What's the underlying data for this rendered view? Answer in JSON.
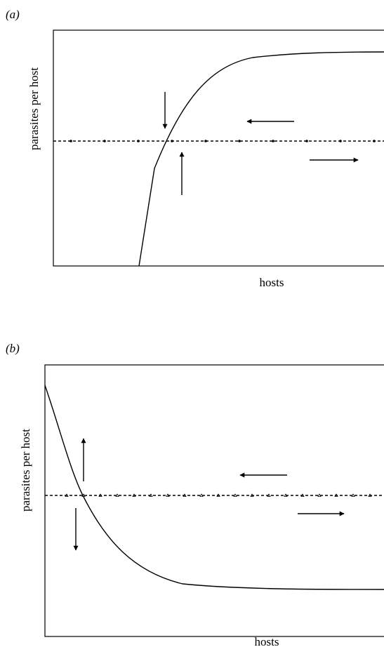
{
  "panels": [
    {
      "id": "a",
      "panel_label": "(a)",
      "ylabel": "parasites per host",
      "xlabel": "hosts",
      "isocline_marker": "dot"
    },
    {
      "id": "b",
      "panel_label": "(b)",
      "ylabel": "parasites per host",
      "xlabel": "hosts",
      "isocline_marker": "triangle"
    }
  ],
  "colors": {
    "line": "#000000",
    "background": "#ffffff"
  }
}
